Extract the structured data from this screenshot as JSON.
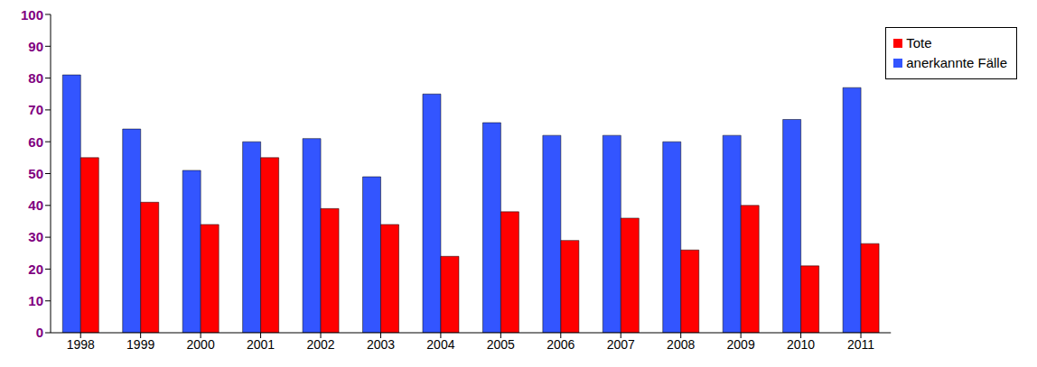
{
  "chart_data": {
    "type": "bar",
    "categories": [
      "1998",
      "1999",
      "2000",
      "2001",
      "2002",
      "2003",
      "2004",
      "2005",
      "2006",
      "2007",
      "2008",
      "2009",
      "2010",
      "2011"
    ],
    "series": [
      {
        "name": "anerkannte Fälle",
        "color": "#3355ff",
        "values": [
          81,
          64,
          51,
          60,
          61,
          49,
          75,
          66,
          62,
          62,
          60,
          62,
          67,
          77
        ]
      },
      {
        "name": "Tote",
        "color": "#ff0000",
        "values": [
          55,
          41,
          34,
          55,
          39,
          34,
          24,
          38,
          29,
          36,
          26,
          40,
          21,
          28
        ]
      }
    ],
    "ylim": [
      0,
      100
    ],
    "yticks": [
      0,
      10,
      20,
      30,
      40,
      50,
      60,
      70,
      80,
      90,
      100
    ],
    "grid": false,
    "legend": "upper right"
  }
}
